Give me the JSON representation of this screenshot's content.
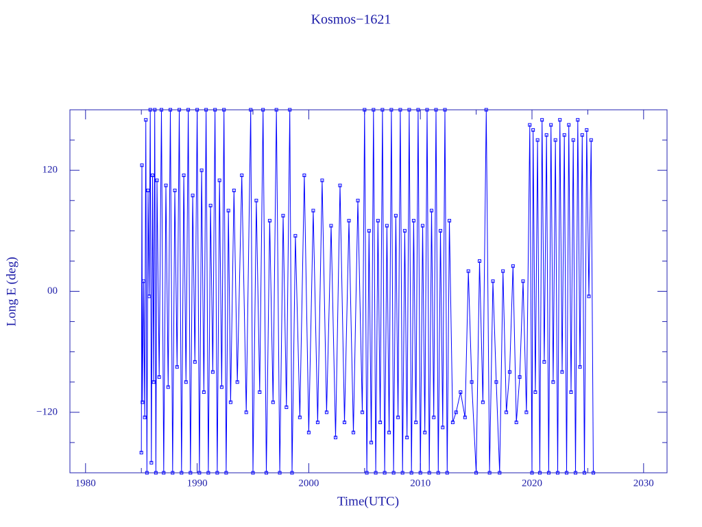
{
  "chart_data": {
    "type": "line",
    "title": "Kosmos−1621",
    "xlabel": "Time(UTC)",
    "ylabel": "Long E (deg)",
    "xlim": [
      1978.6,
      2032.1
    ],
    "ylim": [
      -180,
      180
    ],
    "xticks": [
      1980,
      1990,
      2000,
      2010,
      2020,
      2030
    ],
    "xminorticks": [
      1985,
      1995,
      2005,
      2015,
      2025
    ],
    "yticks": [
      {
        "value": -120,
        "label": "−120"
      },
      {
        "value": 0,
        "label": "00"
      },
      {
        "value": 120,
        "label": "120"
      }
    ],
    "yminorticks": [
      -150,
      -90,
      -60,
      -30,
      30,
      60,
      90,
      150
    ],
    "x": [
      1985.0,
      1985.05,
      1985.1,
      1985.2,
      1985.3,
      1985.4,
      1985.5,
      1985.6,
      1985.7,
      1985.8,
      1985.9,
      1986.0,
      1986.1,
      1986.2,
      1986.3,
      1986.4,
      1986.6,
      1986.8,
      1987.0,
      1987.2,
      1987.4,
      1987.6,
      1987.8,
      1988.0,
      1988.2,
      1988.4,
      1988.6,
      1988.8,
      1989.0,
      1989.2,
      1989.4,
      1989.6,
      1989.8,
      1990.0,
      1990.2,
      1990.4,
      1990.6,
      1990.8,
      1991.0,
      1991.2,
      1991.4,
      1991.6,
      1991.8,
      1992.0,
      1992.2,
      1992.4,
      1992.6,
      1992.8,
      1993.0,
      1993.3,
      1993.6,
      1994.0,
      1994.4,
      1994.8,
      1995.0,
      1995.3,
      1995.6,
      1995.9,
      1996.2,
      1996.5,
      1996.8,
      1997.1,
      1997.4,
      1997.7,
      1998.0,
      1998.3,
      1998.5,
      1998.8,
      1999.2,
      1999.6,
      2000.0,
      2000.4,
      2000.8,
      2001.2,
      2001.6,
      2002.0,
      2002.4,
      2002.8,
      2003.2,
      2003.6,
      2004.0,
      2004.4,
      2004.8,
      2005.0,
      2005.2,
      2005.4,
      2005.6,
      2005.8,
      2006.0,
      2006.2,
      2006.4,
      2006.6,
      2006.8,
      2007.0,
      2007.2,
      2007.4,
      2007.6,
      2007.8,
      2008.0,
      2008.2,
      2008.4,
      2008.6,
      2008.8,
      2009.0,
      2009.2,
      2009.4,
      2009.6,
      2009.8,
      2010.0,
      2010.2,
      2010.4,
      2010.6,
      2010.8,
      2011.0,
      2011.2,
      2011.4,
      2011.6,
      2011.8,
      2012.0,
      2012.2,
      2012.4,
      2012.6,
      2012.9,
      2013.2,
      2013.6,
      2014.0,
      2014.3,
      2014.6,
      2015.0,
      2015.3,
      2015.6,
      2015.9,
      2016.2,
      2016.5,
      2016.8,
      2017.1,
      2017.4,
      2017.7,
      2018.0,
      2018.3,
      2018.6,
      2018.9,
      2019.2,
      2019.5,
      2019.8,
      2020.0,
      2020.1,
      2020.3,
      2020.5,
      2020.7,
      2020.9,
      2021.1,
      2021.3,
      2021.5,
      2021.7,
      2021.9,
      2022.1,
      2022.3,
      2022.5,
      2022.7,
      2022.9,
      2023.1,
      2023.3,
      2023.5,
      2023.7,
      2023.9,
      2024.1,
      2024.3,
      2024.5,
      2024.7,
      2024.9,
      2025.1,
      2025.3,
      2025.5
    ],
    "series": [
      {
        "name": "Kosmos−1621",
        "color": "#0000ff",
        "values": [
          -160,
          125,
          -110,
          10,
          -125,
          170,
          -180,
          100,
          -5,
          180,
          -170,
          115,
          -90,
          180,
          -180,
          110,
          -85,
          180,
          -180,
          105,
          -95,
          180,
          -180,
          100,
          -75,
          180,
          -180,
          115,
          -90,
          180,
          -180,
          95,
          -70,
          180,
          -180,
          120,
          -100,
          180,
          -180,
          85,
          -80,
          180,
          -180,
          110,
          -95,
          180,
          -180,
          80,
          -110,
          100,
          -90,
          115,
          -120,
          180,
          -180,
          90,
          -100,
          180,
          -180,
          70,
          -110,
          180,
          -180,
          75,
          -115,
          180,
          -180,
          55,
          -125,
          115,
          -140,
          80,
          -130,
          110,
          -120,
          65,
          -145,
          105,
          -130,
          70,
          -140,
          90,
          -120,
          180,
          -180,
          60,
          -150,
          180,
          -180,
          70,
          -130,
          180,
          -180,
          65,
          -140,
          180,
          -180,
          75,
          -125,
          180,
          -180,
          60,
          -145,
          180,
          -180,
          70,
          -130,
          180,
          -180,
          65,
          -140,
          180,
          -180,
          80,
          -125,
          180,
          -180,
          60,
          -135,
          180,
          -180,
          70,
          -130,
          -120,
          -100,
          -125,
          20,
          -90,
          -180,
          30,
          -110,
          180,
          -180,
          10,
          -90,
          -180,
          20,
          -120,
          -80,
          25,
          -130,
          -85,
          10,
          -120,
          165,
          -180,
          160,
          -100,
          150,
          -180,
          170,
          -70,
          155,
          -180,
          165,
          -90,
          150,
          -180,
          170,
          -80,
          155,
          -180,
          165,
          -100,
          150,
          -180,
          170,
          -75,
          155,
          -180,
          160,
          -5,
          150,
          -180
        ]
      }
    ]
  }
}
